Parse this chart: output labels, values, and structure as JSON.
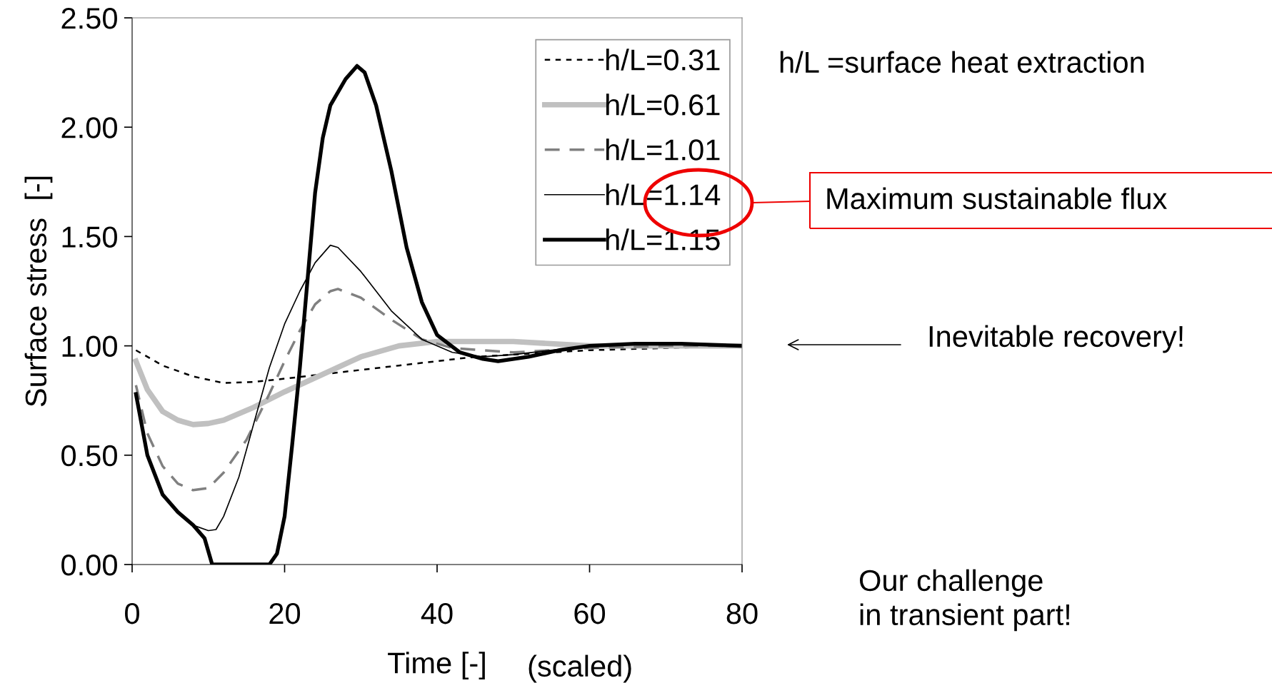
{
  "chart_data": {
    "type": "line",
    "xlabel": "Time [-]",
    "ylabel": "Surface stress  [-]",
    "xlim": [
      0,
      80
    ],
    "xticks": [
      0,
      20,
      40,
      60,
      80
    ],
    "ylim": [
      0,
      2.5
    ],
    "yticks": [
      {
        "value": 0,
        "label": "0.00"
      },
      {
        "value": 0.5,
        "label": "0.50"
      },
      {
        "value": 1,
        "label": "1.00"
      },
      {
        "value": 1.5,
        "label": "1.50"
      },
      {
        "value": 2,
        "label": "2.00"
      },
      {
        "value": 2.5,
        "label": "2.50"
      }
    ],
    "grid": false,
    "legend": "top right",
    "marker": "none",
    "series": [
      {
        "name": "h/L=0.31",
        "color": "#000000",
        "line_style": "dotted",
        "x": [
          0.5,
          4,
          8,
          12,
          16,
          20,
          30,
          35,
          40,
          45,
          50,
          55,
          60,
          70,
          80
        ],
        "values": [
          0.98,
          0.91,
          0.86,
          0.83,
          0.835,
          0.85,
          0.89,
          0.91,
          0.93,
          0.95,
          0.96,
          0.97,
          0.98,
          0.99,
          1.0
        ]
      },
      {
        "name": "h/L=0.61",
        "color": "#c0c0c0",
        "line_style": "solid",
        "x": [
          0.5,
          2,
          4,
          6,
          8,
          10,
          12,
          16,
          20,
          25,
          30,
          35,
          40,
          50,
          60,
          70,
          80
        ],
        "values": [
          0.93,
          0.8,
          0.7,
          0.66,
          0.64,
          0.645,
          0.66,
          0.72,
          0.79,
          0.87,
          0.95,
          1.0,
          1.02,
          1.02,
          1.0,
          1.0,
          1.0
        ]
      },
      {
        "name": "h/L=1.01",
        "color": "#808080",
        "line_style": "dashed",
        "x": [
          0.5,
          2,
          4,
          6,
          8,
          10,
          12,
          15,
          18,
          20,
          22,
          24,
          26,
          27,
          30,
          34,
          38,
          42,
          50,
          60,
          70,
          80
        ],
        "values": [
          0.82,
          0.6,
          0.45,
          0.37,
          0.34,
          0.35,
          0.42,
          0.57,
          0.78,
          0.93,
          1.07,
          1.19,
          1.25,
          1.26,
          1.22,
          1.12,
          1.03,
          0.99,
          0.97,
          0.99,
          1.0,
          1.0
        ]
      },
      {
        "name": "h/L=1.14",
        "color": "#000000",
        "line_style": "solid",
        "x": [
          0.5,
          2,
          4,
          6,
          8,
          10,
          11,
          12,
          14,
          16,
          18,
          20,
          22,
          24,
          26,
          27,
          30,
          34,
          38,
          42,
          46,
          50,
          60,
          66,
          80
        ],
        "values": [
          0.78,
          0.5,
          0.32,
          0.24,
          0.18,
          0.155,
          0.16,
          0.22,
          0.4,
          0.65,
          0.9,
          1.1,
          1.25,
          1.38,
          1.46,
          1.45,
          1.34,
          1.16,
          1.03,
          0.97,
          0.95,
          0.96,
          1.0,
          1.01,
          1.0
        ]
      },
      {
        "name": "h/L=1.15",
        "color": "#000000",
        "line_style": "solid",
        "x": [
          0.5,
          2,
          4,
          6,
          8,
          9.5,
          10.5,
          18,
          19,
          20,
          21,
          22,
          23,
          24,
          25,
          26,
          28,
          29.5,
          30.5,
          32,
          34,
          36,
          38,
          40,
          43,
          46,
          48,
          52,
          56,
          60,
          66,
          72,
          80
        ],
        "values": [
          0.78,
          0.5,
          0.32,
          0.24,
          0.18,
          0.12,
          0.0,
          0.0,
          0.05,
          0.22,
          0.55,
          0.9,
          1.3,
          1.7,
          1.95,
          2.1,
          2.22,
          2.28,
          2.25,
          2.1,
          1.8,
          1.45,
          1.2,
          1.05,
          0.97,
          0.94,
          0.93,
          0.95,
          0.98,
          1.0,
          1.01,
          1.01,
          1.0
        ]
      }
    ],
    "annotations": [
      "h/L =surface heat extraction",
      "Maximum sustainable flux",
      "Inevitable recovery!",
      "Our challenge\nin transient part!",
      "(scaled)"
    ]
  }
}
